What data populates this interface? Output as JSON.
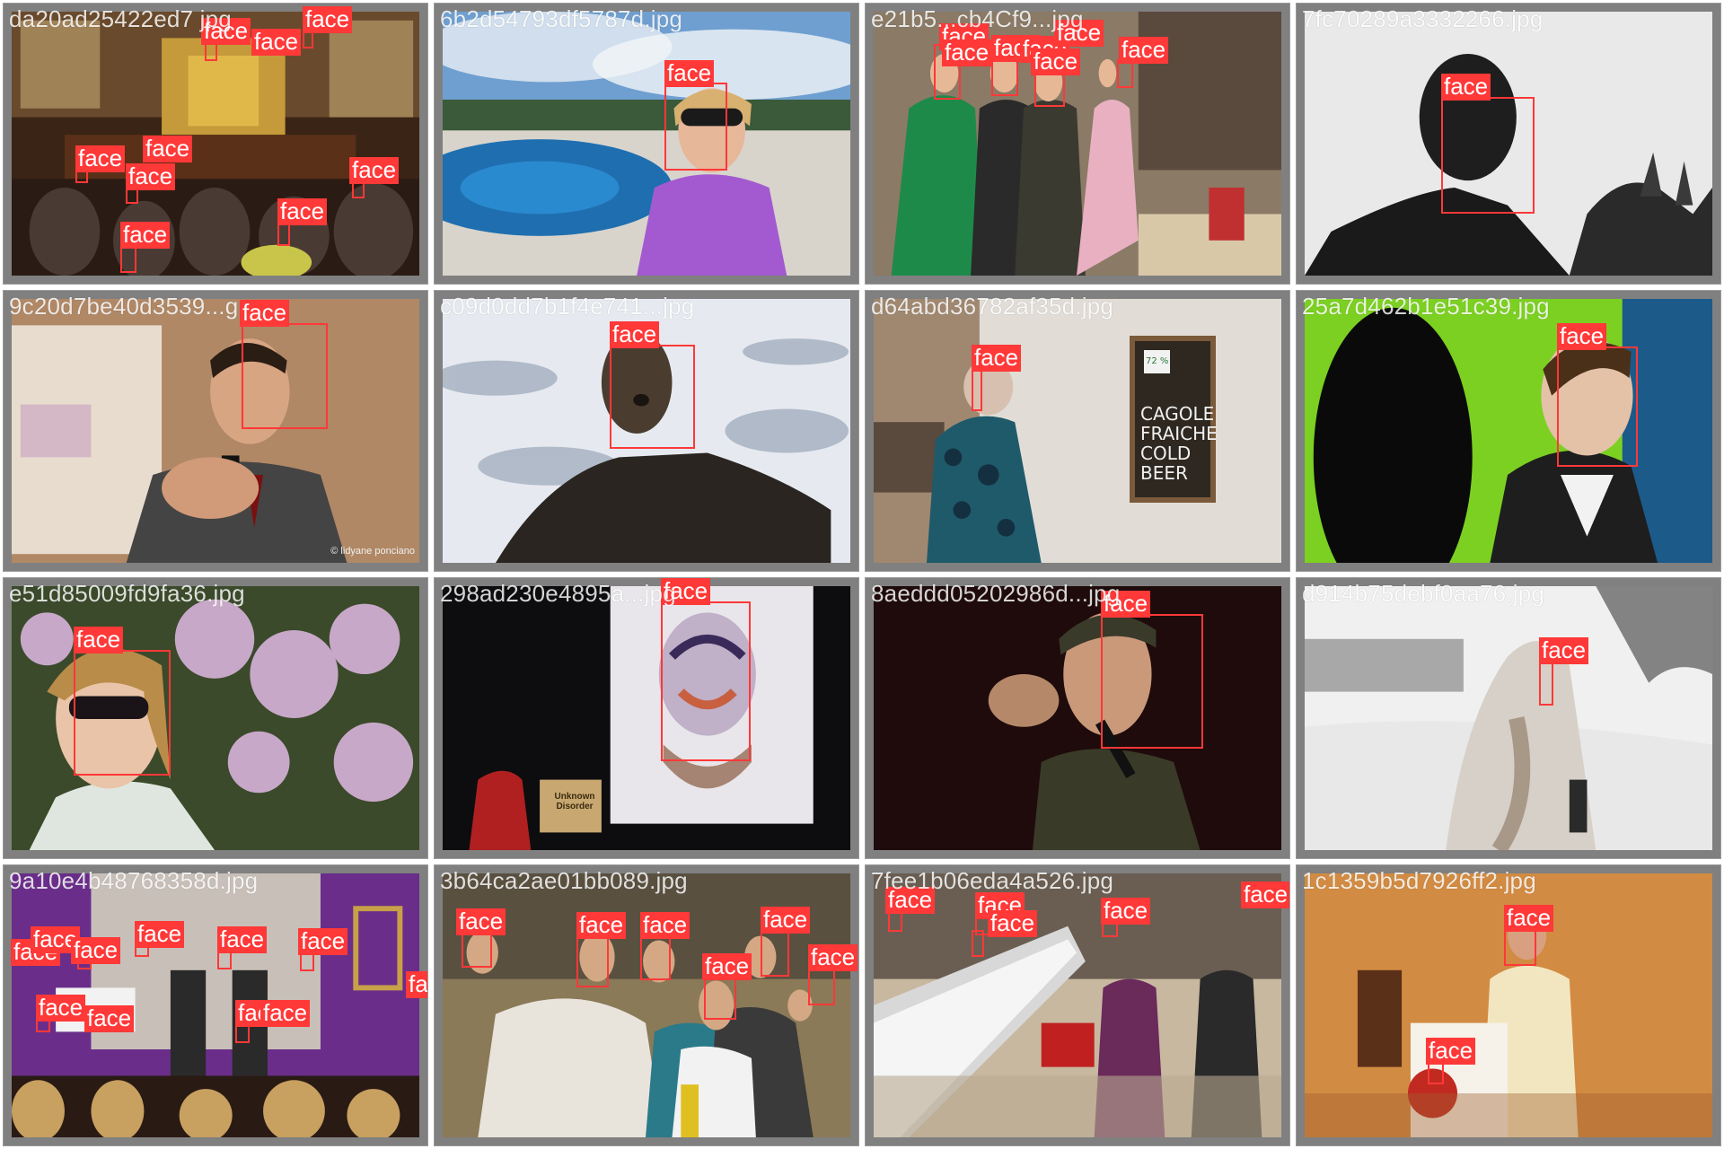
{
  "grid": {
    "tiles": [
      {
        "filename": "da20ad25422ed7...jpg",
        "label": "face",
        "visible_filename": "da20ad25422ed7 jpg"
      },
      {
        "filename": "6b2d54793df5787d.jpg",
        "label": "face"
      },
      {
        "filename": "e21b5...cb4Cf9...jpg",
        "label": "face"
      },
      {
        "filename": "7fc70289a3332266.jpg",
        "label": "face"
      },
      {
        "filename": "9c20d7be40d3539...g",
        "label": "face"
      },
      {
        "filename": "c09d0dd7b1f4e741...jpg",
        "label": "face"
      },
      {
        "filename": "d64abd36782af35d.jpg",
        "label": "face"
      },
      {
        "filename": "25a7d462b1e51c39.jpg",
        "label": "face"
      },
      {
        "filename": "e51d85009fd9fa36.jpg",
        "label": "face"
      },
      {
        "filename": "298ad230e4895a...jpg",
        "label": "face"
      },
      {
        "filename": "8aeddd05202986d...jpg",
        "label": "face"
      },
      {
        "filename": "d914b75debf0aa76.jpg",
        "label": "face"
      },
      {
        "filename": "9a10e4b48768358d.jpg",
        "label": "face"
      },
      {
        "filename": "3b64ca2ae01bb089.jpg",
        "label": "face"
      },
      {
        "filename": "7fee1b06eda4a526.jpg",
        "label": "face"
      },
      {
        "filename": "1c1359b5d7926ff2.jpg",
        "label": "face"
      }
    ]
  },
  "box_color": "#ff3838",
  "label_text_color": "#ffffff",
  "frame_color": "#808080",
  "sign_text": {
    "tile7_board": "CAGOLE FRAICHE COLD BEER",
    "tile7_board_top": "72 %",
    "tile10_podium": "Unknown Disorder",
    "tile5_credit": "© lidyane ponciano"
  }
}
